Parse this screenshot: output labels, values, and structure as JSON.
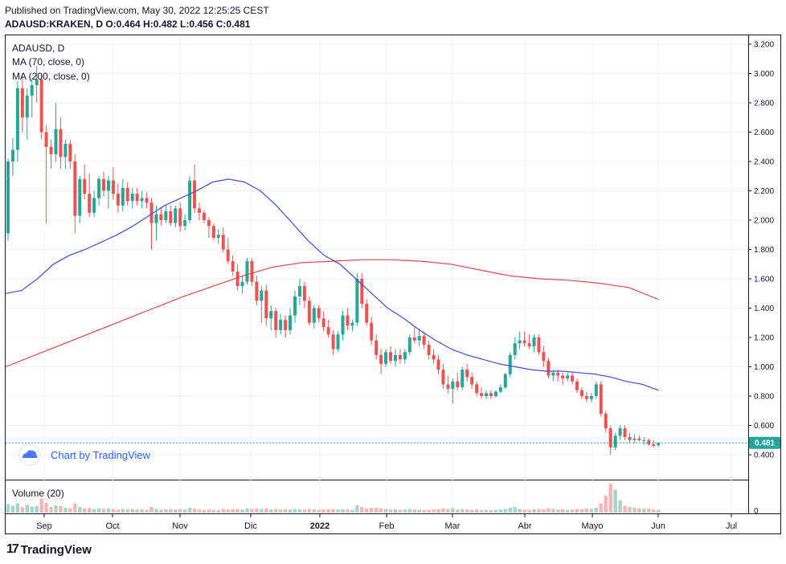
{
  "header": {
    "published": "Published on TradingView.com, May 30, 2022 12:25:25 CEST",
    "ohlc": "ADAUSD:KRAKEN, D O:0.464 H:0.482 L:0.456 C:0.481"
  },
  "legend": {
    "symbol": "ADAUSD, D",
    "ma70": "MA (70, close, 0)",
    "ma200": "MA (200, close, 0)",
    "volume": "Volume (20)"
  },
  "watermark": {
    "text": "Chart by TradingView"
  },
  "brand": {
    "name": "TradingView",
    "mark": "17"
  },
  "last_price": {
    "label": "0.481"
  },
  "colors": {
    "up": "#26a69a",
    "down": "#ef5350",
    "ma70": "#3f4fd9",
    "ma200": "#e0474c",
    "up_vol": "#a5d6c9",
    "down_vol": "#f5b7b6",
    "last_price_line": "#26a69a",
    "grid": "#eef0f3",
    "axis": "#131722"
  },
  "chart_data": {
    "type": "candlestick",
    "symbol": "ADAUSD",
    "interval": "D",
    "y_ticks": [
      "3.200",
      "3.000",
      "2.800",
      "2.600",
      "2.400",
      "2.200",
      "2.000",
      "1.800",
      "1.600",
      "1.400",
      "1.200",
      "1.000",
      "0.800",
      "0.600",
      "0.400"
    ],
    "ylim": [
      0.3,
      3.25
    ],
    "x_ticks": [
      {
        "label": "Sep",
        "bold": false
      },
      {
        "label": "Oct",
        "bold": false
      },
      {
        "label": "Nov",
        "bold": false
      },
      {
        "label": "Dic",
        "bold": false
      },
      {
        "label": "2022",
        "bold": true
      },
      {
        "label": "Feb",
        "bold": false
      },
      {
        "label": "Mar",
        "bold": false
      },
      {
        "label": "Abr",
        "bold": false
      },
      {
        "label": "Mayo",
        "bold": false
      },
      {
        "label": "Jun",
        "bold": false
      },
      {
        "label": "Jul",
        "bold": false
      }
    ],
    "volume_axis_label": "0",
    "last_close": 0.481,
    "ohlc": [
      [
        1.91,
        2.42,
        1.86,
        2.4
      ],
      [
        2.4,
        2.56,
        2.3,
        2.48
      ],
      [
        2.48,
        2.95,
        2.4,
        2.9
      ],
      [
        2.9,
        2.98,
        2.6,
        2.7
      ],
      [
        2.7,
        2.9,
        2.55,
        2.85
      ],
      [
        2.85,
        2.97,
        2.7,
        2.92
      ],
      [
        2.92,
        3.05,
        2.8,
        2.96
      ],
      [
        2.96,
        3.0,
        2.55,
        2.6
      ],
      [
        2.6,
        2.65,
        1.98,
        2.5
      ],
      [
        2.5,
        2.55,
        2.35,
        2.45
      ],
      [
        2.45,
        2.8,
        2.4,
        2.62
      ],
      [
        2.62,
        2.7,
        2.35,
        2.43
      ],
      [
        2.43,
        2.55,
        2.35,
        2.52
      ],
      [
        2.52,
        2.55,
        2.35,
        2.4
      ],
      [
        2.4,
        2.45,
        1.91,
        2.03
      ],
      [
        2.03,
        2.3,
        1.98,
        2.28
      ],
      [
        2.28,
        2.38,
        2.14,
        2.18
      ],
      [
        2.18,
        2.32,
        2.02,
        2.05
      ],
      [
        2.05,
        2.2,
        2.02,
        2.15
      ],
      [
        2.15,
        2.3,
        2.1,
        2.28
      ],
      [
        2.28,
        2.33,
        2.16,
        2.2
      ],
      [
        2.2,
        2.3,
        2.08,
        2.27
      ],
      [
        2.27,
        2.36,
        2.14,
        2.18
      ],
      [
        2.18,
        2.25,
        2.05,
        2.1
      ],
      [
        2.1,
        2.28,
        2.06,
        2.22
      ],
      [
        2.22,
        2.26,
        2.1,
        2.13
      ],
      [
        2.13,
        2.22,
        2.08,
        2.18
      ],
      [
        2.18,
        2.22,
        2.1,
        2.13
      ],
      [
        2.13,
        2.2,
        2.08,
        2.15
      ],
      [
        2.15,
        2.19,
        2.08,
        2.12
      ],
      [
        2.12,
        2.15,
        1.8,
        1.98
      ],
      [
        1.98,
        2.1,
        1.86,
        2.04
      ],
      [
        2.04,
        2.08,
        1.96,
        2.0
      ],
      [
        2.0,
        2.1,
        1.98,
        2.06
      ],
      [
        2.06,
        2.1,
        1.96,
        1.98
      ],
      [
        1.98,
        2.1,
        1.95,
        2.08
      ],
      [
        2.08,
        2.12,
        1.92,
        1.96
      ],
      [
        1.96,
        2.04,
        1.93,
        2.0
      ],
      [
        2.0,
        2.3,
        1.98,
        2.27
      ],
      [
        2.27,
        2.38,
        2.05,
        2.08
      ],
      [
        2.08,
        2.12,
        2.0,
        2.05
      ],
      [
        2.05,
        2.07,
        1.98,
        2.0
      ],
      [
        2.0,
        2.02,
        1.88,
        1.96
      ],
      [
        1.96,
        1.98,
        1.86,
        1.88
      ],
      [
        1.88,
        1.94,
        1.84,
        1.9
      ],
      [
        1.9,
        1.95,
        1.78,
        1.8
      ],
      [
        1.8,
        1.88,
        1.7,
        1.72
      ],
      [
        1.72,
        1.76,
        1.62,
        1.65
      ],
      [
        1.65,
        1.7,
        1.52,
        1.55
      ],
      [
        1.55,
        1.62,
        1.5,
        1.58
      ],
      [
        1.58,
        1.74,
        1.56,
        1.72
      ],
      [
        1.72,
        1.74,
        1.55,
        1.58
      ],
      [
        1.58,
        1.62,
        1.42,
        1.45
      ],
      [
        1.45,
        1.55,
        1.3,
        1.52
      ],
      [
        1.52,
        1.56,
        1.28,
        1.33
      ],
      [
        1.33,
        1.42,
        1.25,
        1.38
      ],
      [
        1.38,
        1.4,
        1.2,
        1.25
      ],
      [
        1.25,
        1.36,
        1.22,
        1.32
      ],
      [
        1.32,
        1.35,
        1.2,
        1.25
      ],
      [
        1.25,
        1.4,
        1.22,
        1.35
      ],
      [
        1.35,
        1.52,
        1.3,
        1.48
      ],
      [
        1.48,
        1.6,
        1.42,
        1.55
      ],
      [
        1.55,
        1.58,
        1.4,
        1.45
      ],
      [
        1.45,
        1.48,
        1.28,
        1.3
      ],
      [
        1.3,
        1.42,
        1.26,
        1.4
      ],
      [
        1.4,
        1.42,
        1.3,
        1.33
      ],
      [
        1.33,
        1.38,
        1.24,
        1.27
      ],
      [
        1.27,
        1.32,
        1.2,
        1.22
      ],
      [
        1.22,
        1.25,
        1.08,
        1.12
      ],
      [
        1.12,
        1.24,
        1.1,
        1.22
      ],
      [
        1.22,
        1.38,
        1.18,
        1.35
      ],
      [
        1.35,
        1.4,
        1.25,
        1.28
      ],
      [
        1.28,
        1.32,
        1.24,
        1.3
      ],
      [
        1.3,
        1.64,
        1.28,
        1.6
      ],
      [
        1.6,
        1.64,
        1.4,
        1.43
      ],
      [
        1.43,
        1.46,
        1.28,
        1.3
      ],
      [
        1.3,
        1.34,
        1.15,
        1.18
      ],
      [
        1.18,
        1.22,
        1.05,
        1.08
      ],
      [
        1.08,
        1.12,
        0.95,
        1.02
      ],
      [
        1.02,
        1.12,
        1.0,
        1.1
      ],
      [
        1.1,
        1.14,
        1.02,
        1.04
      ],
      [
        1.04,
        1.12,
        1.0,
        1.08
      ],
      [
        1.08,
        1.12,
        1.02,
        1.05
      ],
      [
        1.05,
        1.12,
        1.02,
        1.1
      ],
      [
        1.1,
        1.22,
        1.08,
        1.2
      ],
      [
        1.2,
        1.27,
        1.16,
        1.18
      ],
      [
        1.18,
        1.26,
        1.14,
        1.21
      ],
      [
        1.21,
        1.24,
        1.12,
        1.15
      ],
      [
        1.15,
        1.18,
        1.05,
        1.08
      ],
      [
        1.08,
        1.12,
        1.02,
        1.05
      ],
      [
        1.05,
        1.08,
        0.95,
        0.98
      ],
      [
        0.98,
        1.02,
        0.85,
        0.88
      ],
      [
        0.88,
        0.94,
        0.82,
        0.85
      ],
      [
        0.85,
        0.92,
        0.75,
        0.9
      ],
      [
        0.9,
        0.96,
        0.84,
        0.86
      ],
      [
        0.86,
        1.0,
        0.84,
        0.98
      ],
      [
        0.98,
        1.02,
        0.9,
        0.93
      ],
      [
        0.93,
        0.96,
        0.85,
        0.88
      ],
      [
        0.88,
        0.9,
        0.8,
        0.82
      ],
      [
        0.82,
        0.86,
        0.78,
        0.8
      ],
      [
        0.8,
        0.84,
        0.78,
        0.82
      ],
      [
        0.82,
        0.84,
        0.78,
        0.8
      ],
      [
        0.8,
        0.84,
        0.79,
        0.83
      ],
      [
        0.83,
        0.88,
        0.82,
        0.86
      ],
      [
        0.86,
        0.96,
        0.85,
        0.95
      ],
      [
        0.95,
        1.1,
        0.93,
        1.08
      ],
      [
        1.08,
        1.2,
        1.05,
        1.16
      ],
      [
        1.16,
        1.24,
        1.12,
        1.18
      ],
      [
        1.18,
        1.24,
        1.14,
        1.16
      ],
      [
        1.16,
        1.22,
        1.12,
        1.14
      ],
      [
        1.14,
        1.22,
        1.1,
        1.2
      ],
      [
        1.2,
        1.22,
        1.08,
        1.1
      ],
      [
        1.1,
        1.14,
        1.0,
        1.04
      ],
      [
        1.04,
        1.06,
        0.92,
        0.94
      ],
      [
        0.94,
        0.98,
        0.9,
        0.96
      ],
      [
        0.96,
        0.98,
        0.9,
        0.94
      ],
      [
        0.94,
        0.96,
        0.88,
        0.92
      ],
      [
        0.92,
        0.96,
        0.9,
        0.94
      ],
      [
        0.94,
        0.96,
        0.88,
        0.9
      ],
      [
        0.9,
        0.92,
        0.82,
        0.84
      ],
      [
        0.84,
        0.86,
        0.78,
        0.8
      ],
      [
        0.8,
        0.83,
        0.76,
        0.78
      ],
      [
        0.78,
        0.82,
        0.76,
        0.8
      ],
      [
        0.8,
        0.9,
        0.78,
        0.88
      ],
      [
        0.88,
        0.9,
        0.66,
        0.68
      ],
      [
        0.68,
        0.7,
        0.55,
        0.58
      ],
      [
        0.58,
        0.6,
        0.4,
        0.45
      ],
      [
        0.45,
        0.55,
        0.43,
        0.53
      ],
      [
        0.53,
        0.6,
        0.5,
        0.58
      ],
      [
        0.58,
        0.6,
        0.5,
        0.52
      ],
      [
        0.52,
        0.55,
        0.48,
        0.5
      ],
      [
        0.5,
        0.54,
        0.48,
        0.51
      ],
      [
        0.51,
        0.53,
        0.49,
        0.5
      ],
      [
        0.5,
        0.52,
        0.47,
        0.5
      ],
      [
        0.5,
        0.51,
        0.46,
        0.47
      ],
      [
        0.47,
        0.5,
        0.45,
        0.46
      ],
      [
        0.464,
        0.482,
        0.456,
        0.481
      ]
    ],
    "ma70": [
      1.5,
      1.52,
      1.6,
      1.7,
      1.76,
      1.8,
      1.85,
      1.9,
      1.96,
      2.03,
      2.1,
      2.15,
      2.2,
      2.26,
      2.28,
      2.26,
      2.2,
      2.1,
      1.98,
      1.86,
      1.76,
      1.7,
      1.6,
      1.5,
      1.4,
      1.33,
      1.25,
      1.18,
      1.12,
      1.08,
      1.05,
      1.02,
      1.0,
      0.98,
      0.97,
      0.97,
      0.96,
      0.95,
      0.93,
      0.9,
      0.88,
      0.84
    ],
    "ma200": [
      1.0,
      1.08,
      1.16,
      1.24,
      1.32,
      1.4,
      1.48,
      1.55,
      1.62,
      1.68,
      1.71,
      1.72,
      1.73,
      1.73,
      1.72,
      1.7,
      1.66,
      1.62,
      1.6,
      1.59,
      1.57,
      1.54,
      1.46
    ],
    "volume": [
      0.28,
      0.22,
      0.3,
      0.18,
      0.26,
      0.2,
      0.22,
      0.45,
      0.32,
      0.18,
      0.24,
      0.22,
      0.16,
      0.14,
      0.3,
      0.18,
      0.14,
      0.15,
      0.12,
      0.13,
      0.12,
      0.14,
      0.12,
      0.1,
      0.12,
      0.11,
      0.12,
      0.1,
      0.1,
      0.09,
      0.18,
      0.12,
      0.1,
      0.11,
      0.12,
      0.1,
      0.11,
      0.1,
      0.16,
      0.13,
      0.1,
      0.09,
      0.1,
      0.09,
      0.08,
      0.12,
      0.1,
      0.11,
      0.12,
      0.1,
      0.13,
      0.12,
      0.14,
      0.12,
      0.13,
      0.1,
      0.12,
      0.1,
      0.11,
      0.1,
      0.12,
      0.11,
      0.1,
      0.12,
      0.1,
      0.09,
      0.1,
      0.11,
      0.12,
      0.1,
      0.11,
      0.1,
      0.09,
      0.24,
      0.18,
      0.14,
      0.15,
      0.16,
      0.14,
      0.12,
      0.1,
      0.11,
      0.09,
      0.1,
      0.12,
      0.1,
      0.09,
      0.08,
      0.09,
      0.1,
      0.11,
      0.14,
      0.12,
      0.15,
      0.1,
      0.11,
      0.1,
      0.09,
      0.1,
      0.08,
      0.09,
      0.08,
      0.09,
      0.1,
      0.12,
      0.16,
      0.18,
      0.12,
      0.1,
      0.09,
      0.11,
      0.12,
      0.1,
      0.14,
      0.12,
      0.1,
      0.11,
      0.09,
      0.1,
      0.12,
      0.11,
      0.13,
      0.12,
      0.16,
      0.3,
      0.55,
      0.95,
      0.75,
      0.4,
      0.22,
      0.18,
      0.16,
      0.14,
      0.12,
      0.13,
      0.1,
      0.09
    ]
  }
}
